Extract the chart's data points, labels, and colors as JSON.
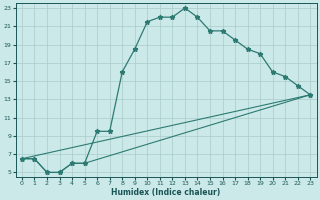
{
  "xlabel": "Humidex (Indice chaleur)",
  "bg_color": "#cce9e9",
  "grid_color": "#aacccc",
  "line_color": "#2d7a72",
  "xlim": [
    -0.5,
    23.5
  ],
  "ylim": [
    4.5,
    23.5
  ],
  "xticks": [
    0,
    1,
    2,
    3,
    4,
    5,
    6,
    7,
    8,
    9,
    10,
    11,
    12,
    13,
    14,
    15,
    16,
    17,
    18,
    19,
    20,
    21,
    22,
    23
  ],
  "yticks": [
    5,
    7,
    9,
    11,
    13,
    15,
    17,
    19,
    21,
    23
  ],
  "line1_x": [
    0,
    1,
    2,
    3,
    4,
    5,
    6,
    7,
    8,
    9,
    10,
    11,
    12,
    13,
    14,
    15,
    16,
    17,
    18,
    19,
    20,
    21,
    22,
    23
  ],
  "line1_y": [
    6.5,
    6.5,
    5.0,
    5.0,
    6.0,
    6.0,
    9.5,
    9.5,
    16.0,
    18.5,
    21.5,
    22.0,
    22.0,
    23.0,
    22.0,
    20.5,
    20.5,
    19.5,
    18.5,
    18.0,
    16.0,
    15.5,
    14.5,
    13.5
  ],
  "line2_x": [
    0,
    1,
    2,
    3,
    4,
    5,
    23
  ],
  "line2_y": [
    6.5,
    6.5,
    5.0,
    5.0,
    6.0,
    6.0,
    13.5
  ],
  "line3_x": [
    0,
    23
  ],
  "line3_y": [
    6.5,
    13.5
  ]
}
